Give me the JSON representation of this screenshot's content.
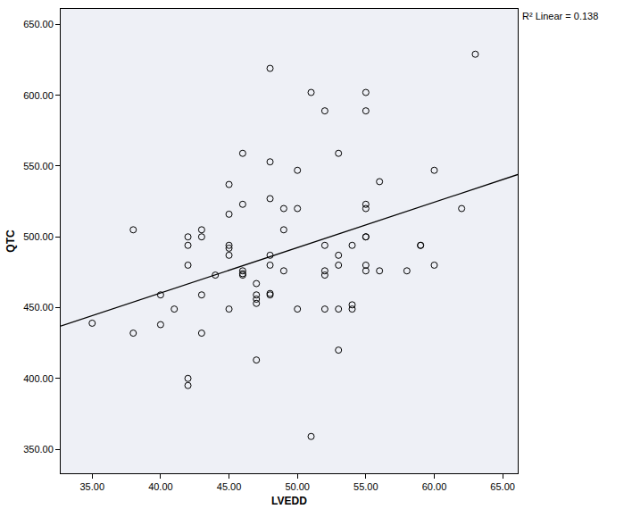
{
  "chart_data": {
    "type": "scatter",
    "x_label": "LVEDD",
    "y_label": "QTC",
    "annotation": "R² Linear = 0.138",
    "marker": "circle-open",
    "color": "#000000",
    "x": [
      35,
      38,
      38,
      40,
      40,
      41,
      42,
      42,
      42,
      42,
      42,
      43,
      43,
      43,
      43,
      44,
      45,
      45,
      45,
      45,
      45,
      45,
      46,
      46,
      46,
      46,
      46,
      47,
      47,
      47,
      47,
      47,
      48,
      48,
      48,
      48,
      48,
      48,
      48,
      49,
      49,
      49,
      50,
      50,
      50,
      51,
      51,
      52,
      52,
      52,
      52,
      52,
      53,
      53,
      53,
      53,
      53,
      54,
      54,
      54,
      55,
      55,
      55,
      55,
      55,
      55,
      55,
      55,
      56,
      56,
      58,
      59,
      59,
      60,
      60,
      62,
      63
    ],
    "values": [
      439,
      505,
      432,
      459,
      438,
      449,
      500,
      494,
      480,
      400,
      395,
      505,
      500,
      459,
      432,
      473,
      537,
      516,
      494,
      492,
      487,
      449,
      559,
      523,
      476,
      474,
      473,
      467,
      459,
      456,
      453,
      413,
      619,
      553,
      527,
      487,
      480,
      460,
      459,
      520,
      505,
      476,
      547,
      520,
      449,
      602,
      359,
      589,
      494,
      476,
      473,
      449,
      559,
      487,
      480,
      449,
      420,
      494,
      452,
      449,
      602,
      589,
      523,
      520,
      500,
      500,
      480,
      476,
      539,
      476,
      476,
      494,
      494,
      547,
      480,
      520,
      629
    ],
    "trend_line": {
      "x": [
        32.7,
        66.1
      ],
      "y": [
        437,
        544
      ]
    },
    "xlim": [
      32.7,
      66.1
    ],
    "ylim": [
      333,
      661
    ],
    "xticks": [
      {
        "value": 35,
        "label": "35.00"
      },
      {
        "value": 40,
        "label": "40.00"
      },
      {
        "value": 45,
        "label": "45.00"
      },
      {
        "value": 50,
        "label": "50.00"
      },
      {
        "value": 55,
        "label": "55.00"
      },
      {
        "value": 60,
        "label": "60.00"
      },
      {
        "value": 65,
        "label": "65.00"
      }
    ],
    "yticks": [
      {
        "value": 350,
        "label": "350.00"
      },
      {
        "value": 400,
        "label": "400.00"
      },
      {
        "value": 450,
        "label": "450.00"
      },
      {
        "value": 500,
        "label": "500.00"
      },
      {
        "value": 550,
        "label": "550.00"
      },
      {
        "value": 600,
        "label": "600.00"
      },
      {
        "value": 650,
        "label": "650.00"
      }
    ],
    "grid": false
  }
}
